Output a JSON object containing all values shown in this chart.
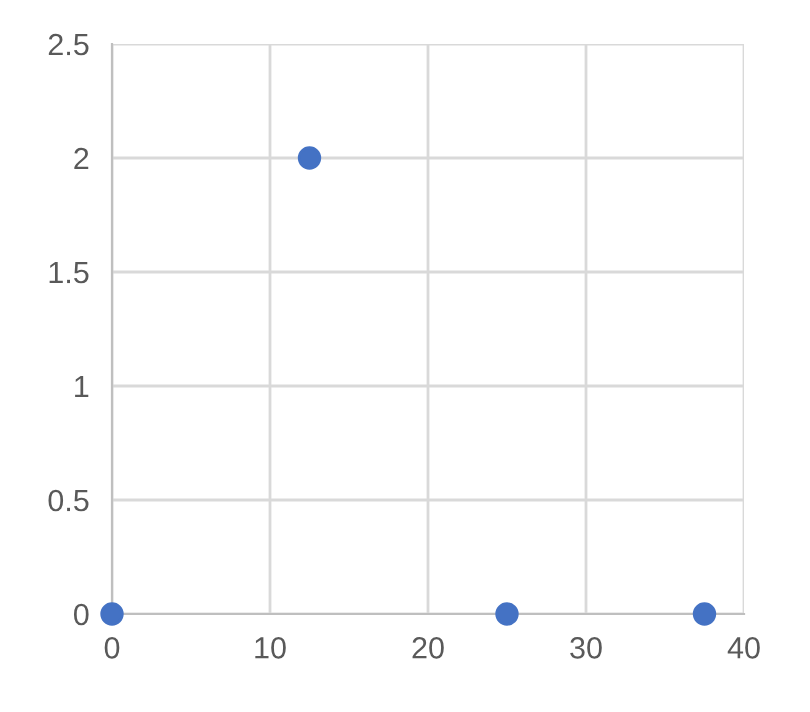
{
  "chart_data": {
    "type": "scatter",
    "x": [
      0,
      12.5,
      25,
      37.5
    ],
    "series": [
      {
        "color": "#4472c4",
        "values": [
          0,
          2,
          0,
          0
        ]
      }
    ],
    "xlim": [
      0,
      40
    ],
    "xticks": [
      0,
      10,
      20,
      30,
      40
    ],
    "ylim": [
      0,
      2.5
    ],
    "yticks": [
      0,
      0.5,
      1,
      1.5,
      2,
      2.5
    ],
    "grid": true,
    "marker": "circle"
  }
}
